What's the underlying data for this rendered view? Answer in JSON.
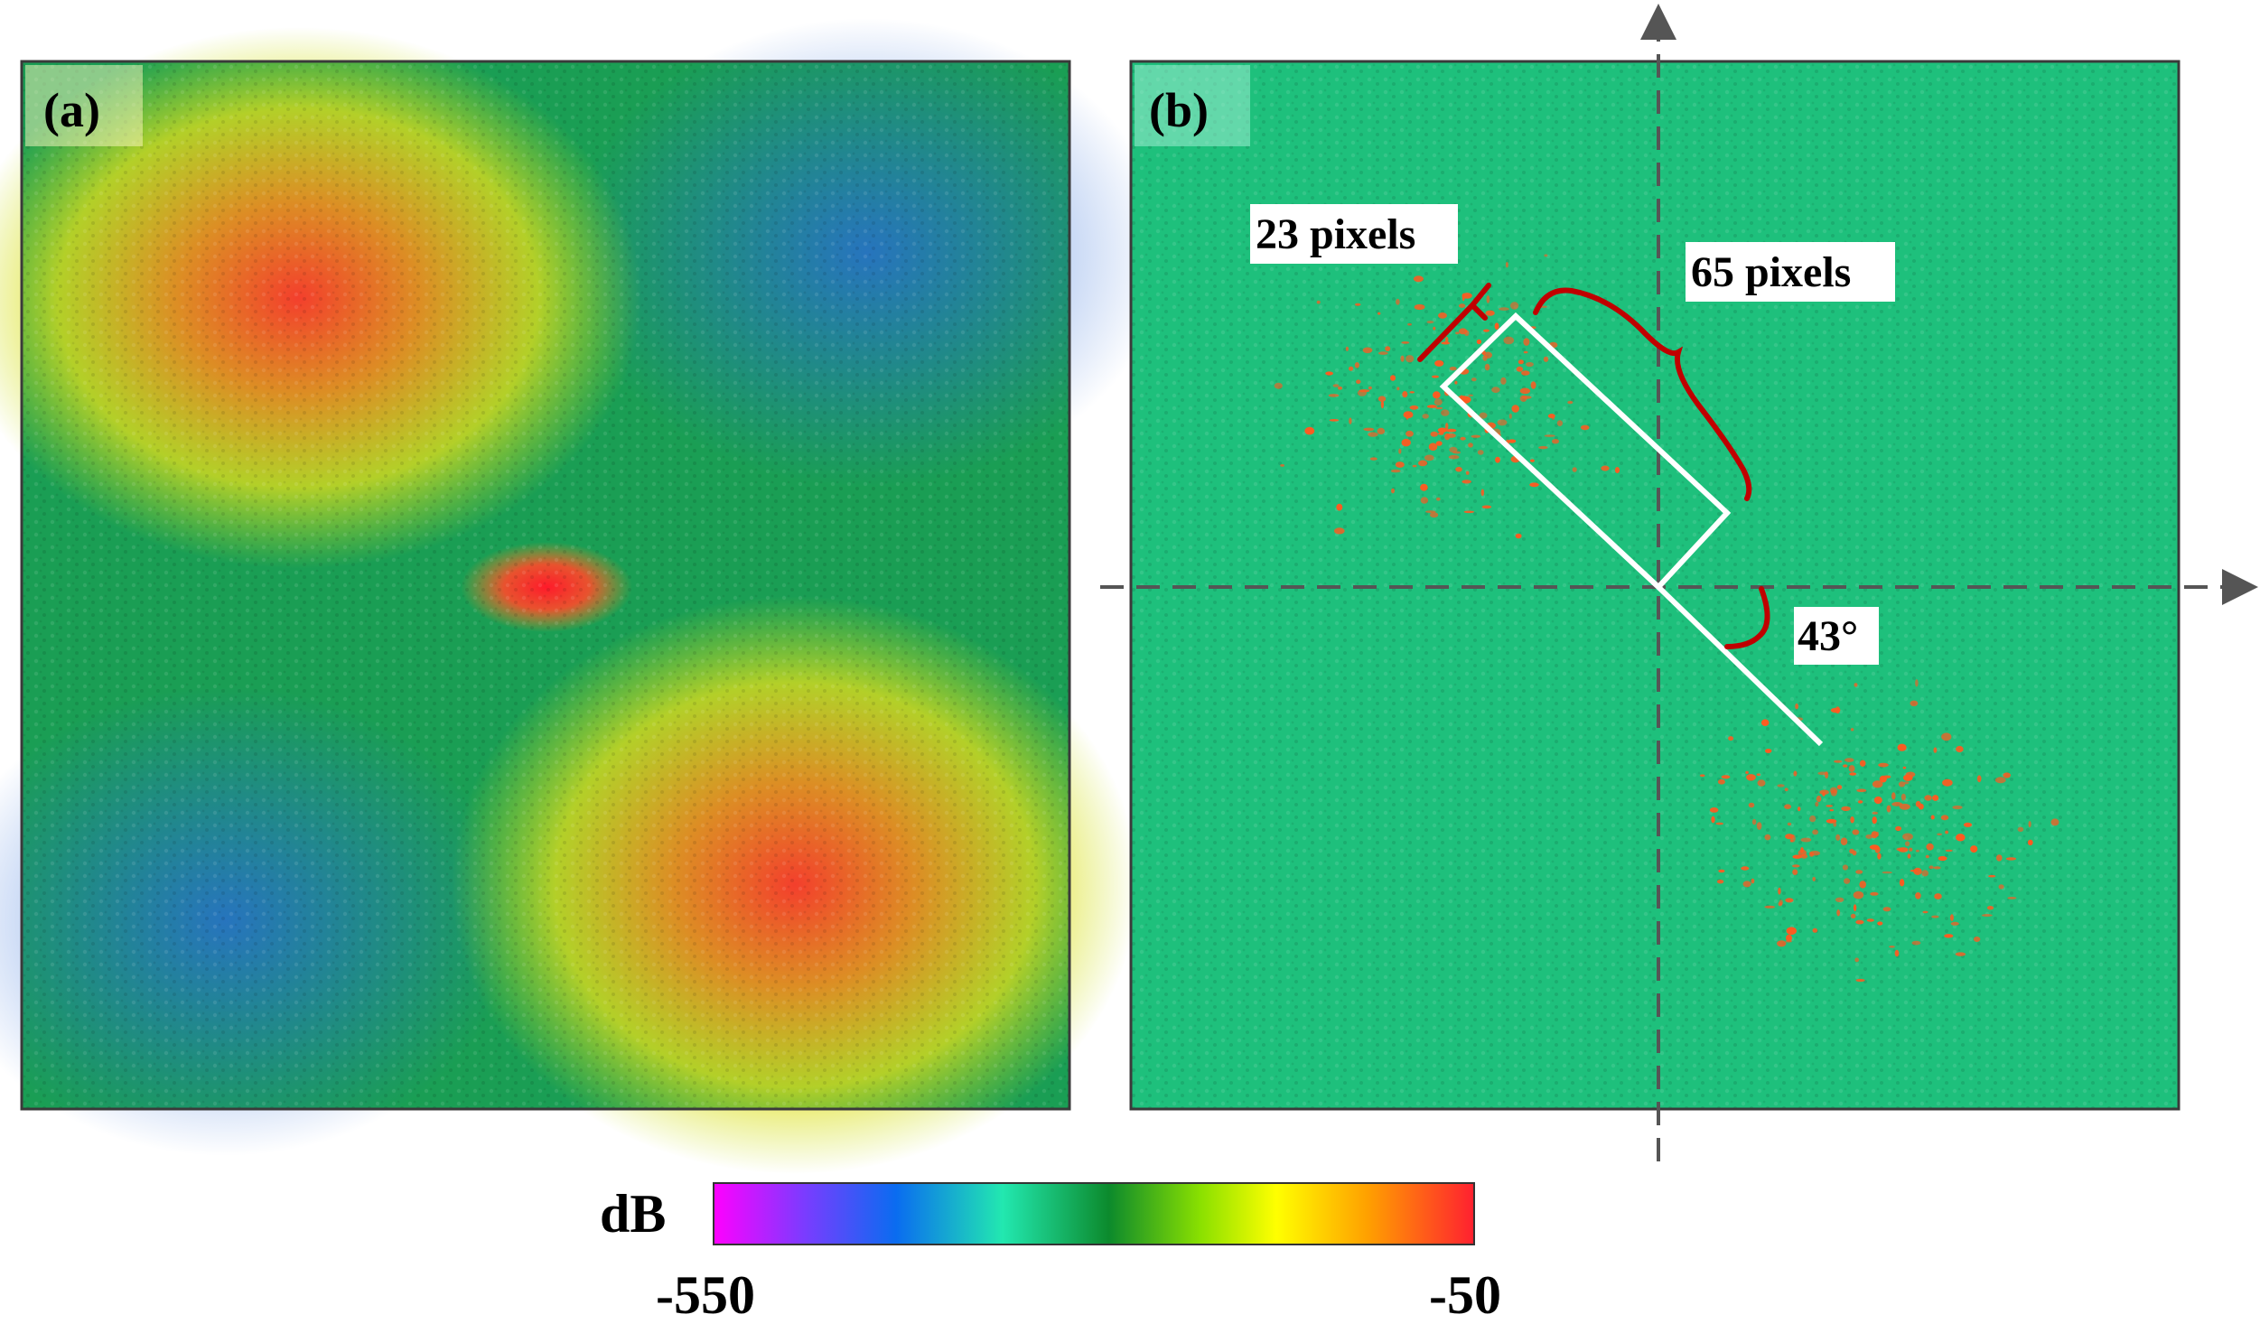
{
  "panels": {
    "a": {
      "label": "(a)"
    },
    "b": {
      "label": "(b)",
      "width_annotation": "23 pixels",
      "length_annotation": "65 pixels",
      "angle_annotation": "43°"
    }
  },
  "colorbar": {
    "unit_label": "dB",
    "min_label": "-550",
    "max_label": "-50",
    "gradient_colors": [
      "#ff00ff",
      "#7a3cff",
      "#0a6cf0",
      "#22e8b0",
      "#0c8a2c",
      "#8ae000",
      "#ffff00",
      "#ffa000",
      "#ff2030"
    ]
  },
  "colors": {
    "panel_b_background": "#1ec07c",
    "scatter_red": "#ff5a20",
    "brace_red": "#c00000",
    "axis_gray": "#555555"
  }
}
